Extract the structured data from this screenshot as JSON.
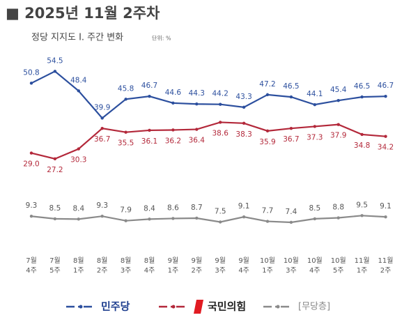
{
  "chart_data": {
    "type": "line",
    "title": "■ 2025년 11월 2주차",
    "subtitle": "정당 지지도 Ⅰ. 주간 변화",
    "unit": "단위: %",
    "categories": [
      "7월\n4주",
      "7월\n5주",
      "8월\n1주",
      "8월\n2주",
      "8월\n3주",
      "8월\n4주",
      "9월\n1주",
      "9월\n2주",
      "9월\n3주",
      "9월\n4주",
      "10월\n1주",
      "10월\n3주",
      "10월\n4주",
      "10월\n5주",
      "11월\n1주",
      "11월\n2주"
    ],
    "series": [
      {
        "name": "민주당",
        "color": "#2c4f9e",
        "values": [
          50.8,
          54.5,
          48.4,
          39.9,
          45.8,
          46.7,
          44.6,
          44.3,
          44.2,
          43.3,
          47.2,
          46.5,
          44.1,
          45.4,
          46.5,
          46.7
        ],
        "value_labels": [
          "50.8",
          "54.5",
          "48.4",
          "39.9",
          "45.8",
          "46.7",
          "44.6",
          "44.3",
          "44.2",
          "43.3",
          "47.2",
          "46.5",
          "44.1",
          "45.4",
          "46.5",
          "46.7"
        ]
      },
      {
        "name": "국민의힘",
        "color": "#b3283a",
        "values": [
          29.0,
          27.2,
          30.3,
          36.7,
          35.5,
          36.1,
          36.2,
          36.4,
          38.6,
          38.3,
          35.9,
          36.7,
          37.3,
          37.9,
          34.8,
          34.2
        ],
        "value_labels": [
          "29.0",
          "27.2",
          "30.3",
          "36.7",
          "35.5",
          "36.1",
          "36.2",
          "36.4",
          "38.6",
          "38.3",
          "35.9",
          "36.7",
          "37.3",
          "37.9",
          "34.8",
          "34.2"
        ]
      },
      {
        "name": "[무당층]",
        "color": "#8a8a8a",
        "values": [
          9.3,
          8.5,
          8.4,
          9.3,
          7.9,
          8.4,
          8.6,
          8.7,
          7.5,
          9.1,
          7.7,
          7.4,
          8.5,
          8.8,
          9.5,
          9.1
        ],
        "value_labels": [
          "9.3",
          "8.5",
          "8.4",
          "9.3",
          "7.9",
          "8.4",
          "8.6",
          "8.7",
          "7.5",
          "9.1",
          "7.7",
          "7.4",
          "8.5",
          "8.8",
          "9.5",
          "9.1"
        ]
      }
    ]
  }
}
